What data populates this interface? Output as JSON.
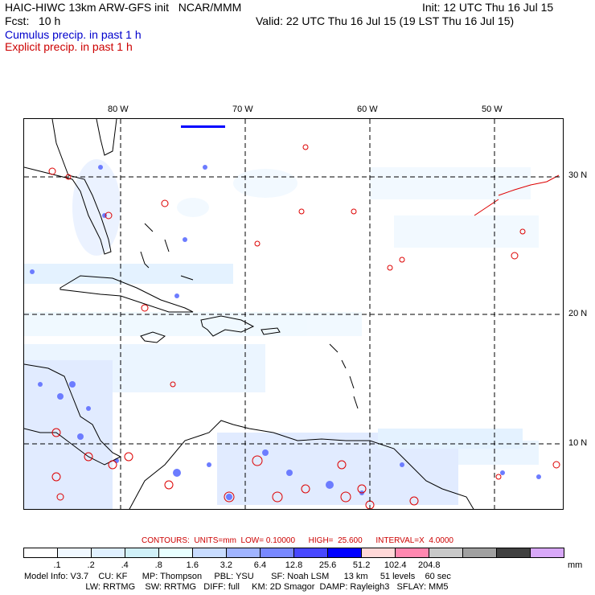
{
  "header": {
    "title_left": "HAIC-HIWC 13km ARW-GFS init   NCAR/MMM",
    "init": "Init: 12 UTC Thu 16 Jul 15",
    "fcst": "Fcst:   10 h",
    "valid": "Valid: 22 UTC Thu 16 Jul 15 (19 LST Thu 16 Jul 15)",
    "cumulus": "Cumulus precip. in past 1 h",
    "explicit": "Explicit precip. in past 1 h"
  },
  "map": {
    "lon_labels": [
      "80 W",
      "70 W",
      "60 W",
      "50 W"
    ],
    "lat_labels": [
      "30 N",
      "20 N",
      "10 N"
    ]
  },
  "contours": {
    "text": "CONTOURS:  UNITS=mm  LOW= 0.10000      HIGH=  25.600      INTERVAL=X  4.0000"
  },
  "colorbar": {
    "colors": [
      "#ffffff",
      "#f0f8ff",
      "#e0f0ff",
      "#d0f0f8",
      "#e8ffff",
      "#c8dcff",
      "#a0b4ff",
      "#7888ff",
      "#4848ff",
      "#0000ff",
      "#ffd8d8",
      "#ff88b0",
      "#c8c8c8",
      "#a0a0a0",
      "#404040",
      "#d8a8f8"
    ],
    "ticks": [
      ".1",
      ".2",
      ".4",
      ".8",
      "1.6",
      "3.2",
      "6.4",
      "12.8",
      "25.6",
      "51.2",
      "102.4",
      "204.8"
    ],
    "unit": "mm"
  },
  "footer": {
    "line1": "Model Info: V3.7    CU: KF      MP: Thompson     PBL: YSU       SF: Noah LSM      13 km     51 levels    60 sec",
    "line2": "                         LW: RRTMG    SW: RRTMG   DIFF: full     KM: 2D Smagor  DAMP: Rayleigh3   SFLAY: MM5"
  }
}
